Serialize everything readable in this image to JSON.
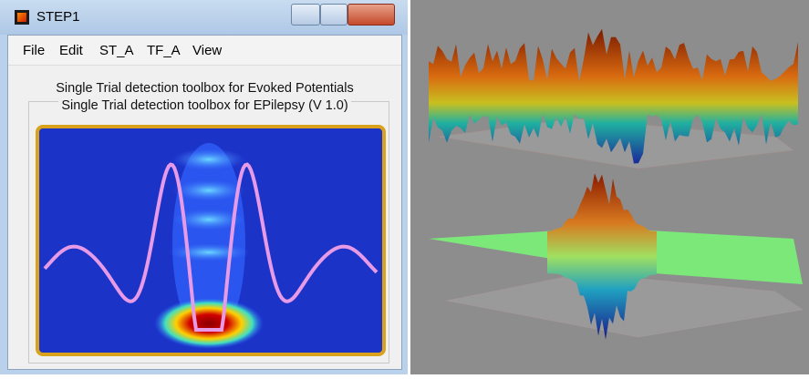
{
  "window": {
    "title": "STEP1"
  },
  "menu": [
    "File",
    "Edit",
    "ST_A",
    "TF_A",
    "View"
  ],
  "panel": {
    "line1": "Single Trial detection toolbox for Evoked Potentials",
    "line2": "Single Trial detection toolbox for EPilepsy (V 1.0)"
  }
}
